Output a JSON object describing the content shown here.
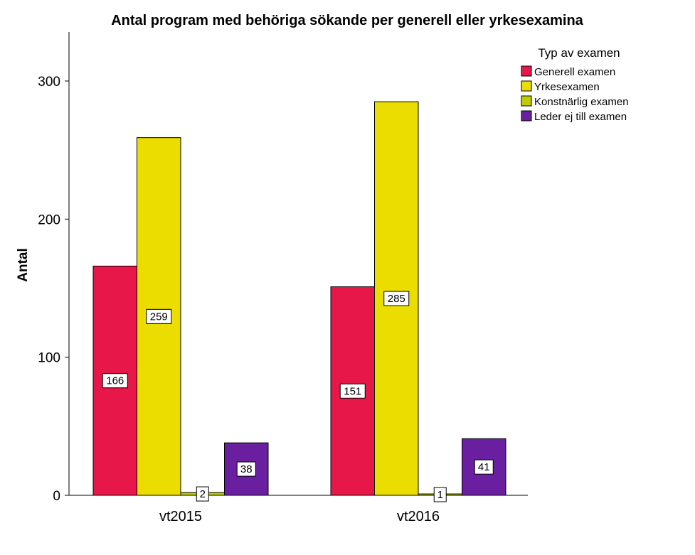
{
  "chart_data": {
    "type": "bar",
    "title": "Antal  program med behöriga sökande per generell eller yrkesexamina",
    "xlabel": "",
    "ylabel": "Antal",
    "ylim": [
      0,
      335
    ],
    "yticks": [
      0,
      100,
      200,
      300
    ],
    "categories": [
      "vt2015",
      "vt2016"
    ],
    "legend_title": "Typ av examen",
    "legend_position": "top-right",
    "grid": false,
    "series": [
      {
        "name": "Generell examen",
        "color": "#e8174a",
        "values": [
          166,
          151
        ]
      },
      {
        "name": "Yrkesexamen",
        "color": "#ecdd00",
        "values": [
          259,
          285
        ]
      },
      {
        "name": "Konstnärlig examen",
        "color": "#bfcc00",
        "values": [
          2,
          1
        ]
      },
      {
        "name": "Leder ej till examen",
        "color": "#6a1fa0",
        "values": [
          38,
          41
        ]
      }
    ]
  }
}
